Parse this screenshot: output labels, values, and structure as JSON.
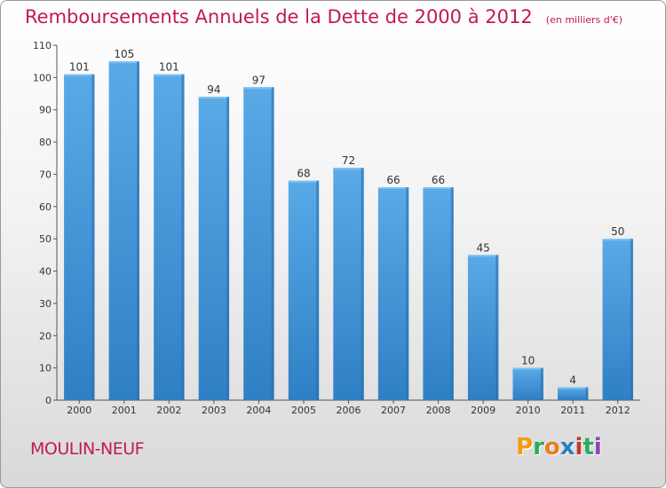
{
  "chart_data": {
    "type": "bar",
    "title": "Remboursements Annuels de la Dette de 2000 à 2012",
    "unit_label": "(en milliers d'€)",
    "categories": [
      "2000",
      "2001",
      "2002",
      "2003",
      "2004",
      "2005",
      "2006",
      "2007",
      "2008",
      "2009",
      "2010",
      "2011",
      "2012"
    ],
    "values": [
      101,
      105,
      101,
      94,
      97,
      68,
      72,
      66,
      66,
      45,
      10,
      4,
      50
    ],
    "ylim": [
      0,
      110
    ],
    "yticks": [
      0,
      10,
      20,
      30,
      40,
      50,
      60,
      70,
      80,
      90,
      100,
      110
    ],
    "xlabel": "",
    "ylabel": "",
    "grid": false,
    "bar_color": "#3f8fd2",
    "bar_highlight": "#5aaae8"
  },
  "place_name": "MOULIN-NEUF",
  "logo": {
    "letters": [
      "P",
      "r",
      "o",
      "x",
      "i",
      "t",
      "i"
    ],
    "colors": [
      "#f39c12",
      "#27ae60",
      "#e67e22",
      "#2980b9",
      "#c0392b",
      "#27ae60",
      "#8e44ad"
    ]
  },
  "colors": {
    "title": "#c2185b",
    "place": "#c2185b"
  }
}
